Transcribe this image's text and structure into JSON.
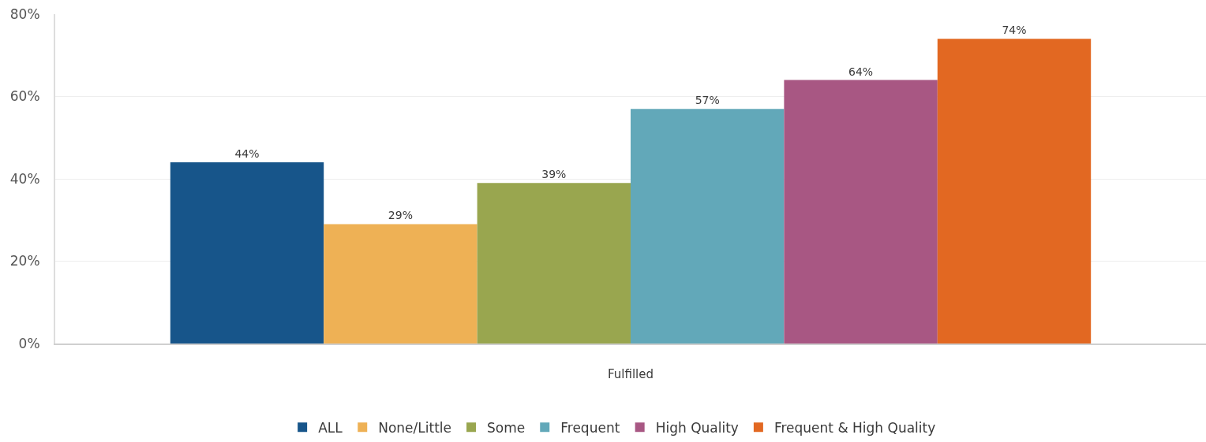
{
  "chart_data": {
    "type": "bar",
    "categories": [
      "Fulfilled"
    ],
    "series": [
      {
        "name": "ALL",
        "color": "#17558a",
        "values": [
          44
        ],
        "value_labels": [
          "44%"
        ]
      },
      {
        "name": "None/Little",
        "color": "#eeb155",
        "values": [
          29
        ],
        "value_labels": [
          "29%"
        ]
      },
      {
        "name": "Some",
        "color": "#99a64f",
        "values": [
          39
        ],
        "value_labels": [
          "39%"
        ]
      },
      {
        "name": "Frequent",
        "color": "#62a8b9",
        "values": [
          57
        ],
        "value_labels": [
          "57%"
        ]
      },
      {
        "name": "High Quality",
        "color": "#a85783",
        "values": [
          64
        ],
        "value_labels": [
          "64%"
        ]
      },
      {
        "name": "Frequent & High Quality",
        "color": "#e26822",
        "values": [
          74
        ],
        "value_labels": [
          "74%"
        ]
      }
    ],
    "ylim": [
      0,
      80
    ],
    "yticks": [
      {
        "value": 0,
        "label": "0%"
      },
      {
        "value": 20,
        "label": "20%"
      },
      {
        "value": 40,
        "label": "40%"
      },
      {
        "value": 60,
        "label": "60%"
      },
      {
        "value": 80,
        "label": "80%"
      }
    ],
    "grid": "y",
    "legend": "bottom"
  }
}
